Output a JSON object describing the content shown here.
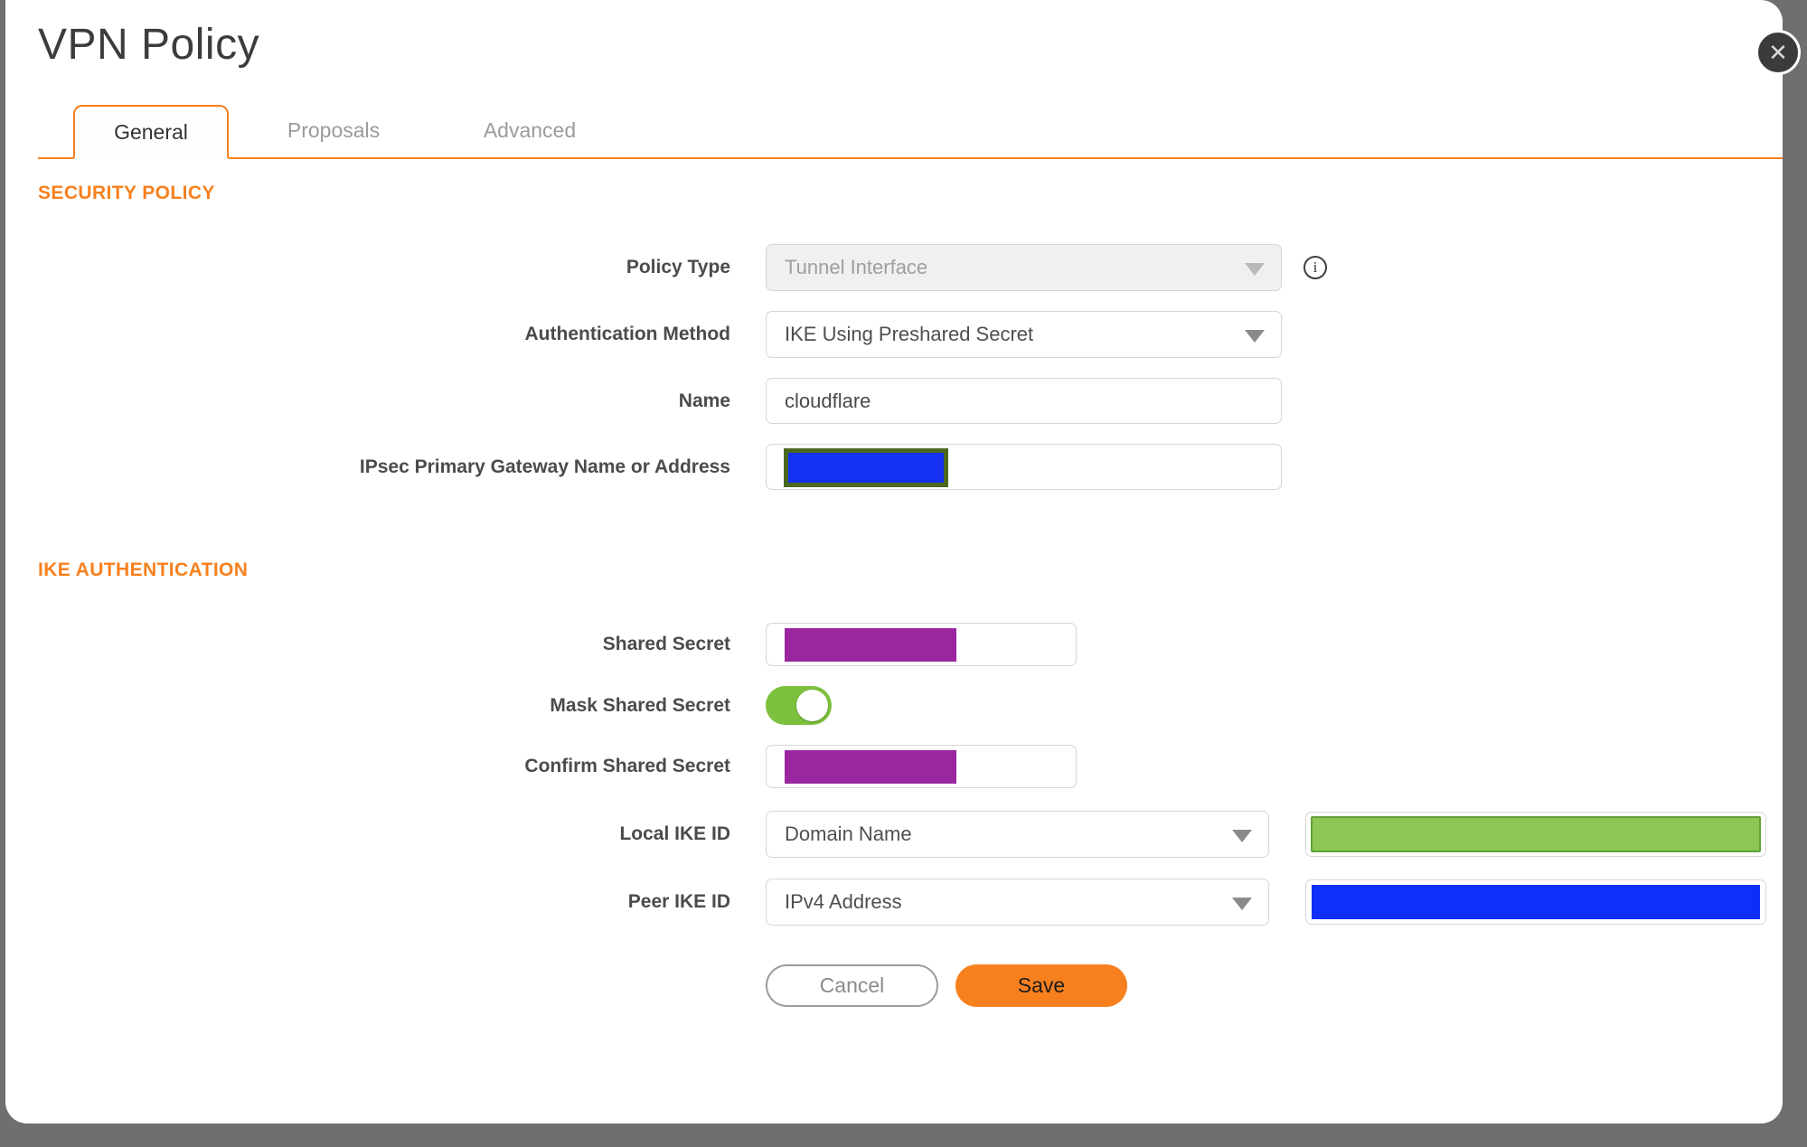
{
  "dialog": {
    "title": "VPN Policy",
    "close_icon": "✕"
  },
  "tabs": [
    {
      "label": "General",
      "active": true
    },
    {
      "label": "Proposals",
      "active": false
    },
    {
      "label": "Advanced",
      "active": false
    }
  ],
  "sections": {
    "security_policy": "SECURITY POLICY",
    "ike_authentication": "IKE AUTHENTICATION"
  },
  "form": {
    "policy_type": {
      "label": "Policy Type",
      "value": "Tunnel Interface",
      "disabled": true,
      "info_icon": "i"
    },
    "authentication_method": {
      "label": "Authentication Method",
      "value": "IKE Using Preshared Secret"
    },
    "name": {
      "label": "Name",
      "value": "cloudflare"
    },
    "gateway": {
      "label": "IPsec Primary Gateway Name or Address",
      "value_redacted": true
    },
    "shared_secret": {
      "label": "Shared Secret",
      "value_redacted": true
    },
    "mask_shared_secret": {
      "label": "Mask Shared Secret",
      "state": "on"
    },
    "confirm_shared_secret": {
      "label": "Confirm Shared Secret",
      "value_redacted": true
    },
    "local_ike_id": {
      "label": "Local IKE ID",
      "value": "Domain Name",
      "id_value_redacted": true
    },
    "peer_ike_id": {
      "label": "Peer IKE ID",
      "value": "IPv4 Address",
      "id_value_redacted": true
    }
  },
  "buttons": {
    "cancel": "Cancel",
    "save": "Save"
  },
  "colors": {
    "accent_orange": "#F7801E",
    "redaction_blue": "#0D2FF7",
    "redaction_purple": "#9A27A0",
    "redaction_green": "#8DC653",
    "toggle_green": "#7CC03D"
  }
}
